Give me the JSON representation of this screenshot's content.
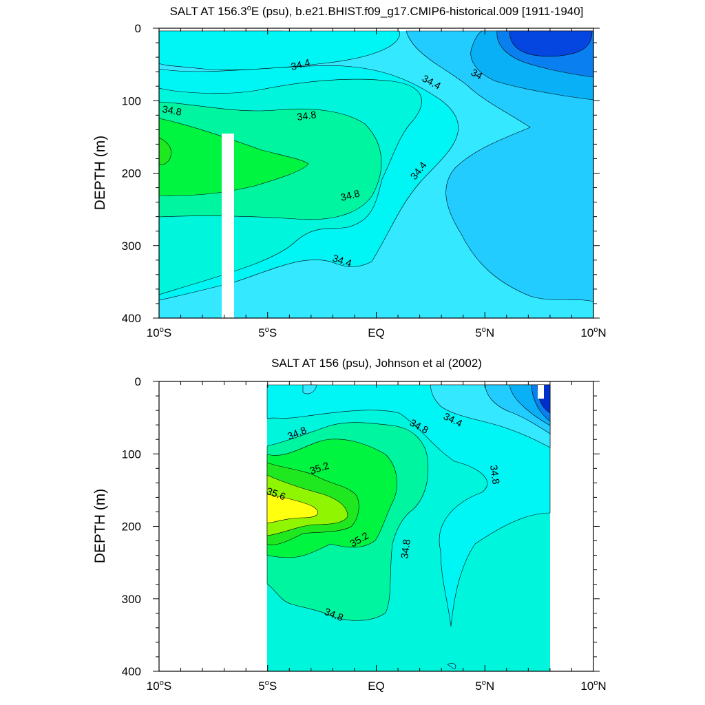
{
  "chart_data": [
    {
      "type": "contour",
      "title": "SALT AT 156.3°E (psu), b.e21.BHIST.f09_g17.CMIP6-historical.009 [1911-1940]",
      "title_parts": {
        "pre": "SALT AT 156.3",
        "sup": "o",
        "post": "E (psu), b.e21.BHIST.f09_g17.CMIP6-historical.009 [1911-1940]"
      },
      "xlabel": "",
      "ylabel": "DEPTH (m)",
      "xlim": [
        -10,
        10
      ],
      "ylim": [
        400,
        0
      ],
      "x_ticks": [
        {
          "value": -10,
          "num": "10",
          "sup": "o",
          "hem": "S"
        },
        {
          "value": -5,
          "num": "5",
          "sup": "o",
          "hem": "S"
        },
        {
          "value": 0,
          "num": "EQ",
          "sup": "",
          "hem": ""
        },
        {
          "value": 5,
          "num": "5",
          "sup": "o",
          "hem": "N"
        },
        {
          "value": 10,
          "num": "10",
          "sup": "o",
          "hem": "N"
        }
      ],
      "y_ticks": [
        0,
        100,
        200,
        300,
        400
      ],
      "contour_labels": [
        {
          "text": "34.4",
          "lat": -4.5,
          "depth": 48
        },
        {
          "text": "34.8",
          "lat": -9.5,
          "depth": 111
        },
        {
          "text": "34.8",
          "lat": -1.5,
          "depth": 118
        },
        {
          "text": "34.4",
          "lat": 2.5,
          "depth": 75
        },
        {
          "text": "34",
          "lat": 5.5,
          "depth": 62
        },
        {
          "text": "34.8",
          "lat": -1.0,
          "depth": 225
        },
        {
          "text": "34.4",
          "lat": 2.2,
          "depth": 190
        },
        {
          "text": "34.4",
          "lat": -1.5,
          "depth": 320
        }
      ],
      "salinity_ranges_psu": {
        "min_shown": 33.6,
        "max_shown": 35.0,
        "contour_interval": 0.2
      }
    },
    {
      "type": "contour",
      "title": "SALT AT 156 (psu), Johnson et al (2002)",
      "title_parts": {
        "pre": "SALT AT 156 (psu), Johnson et al (2002)",
        "sup": "",
        "post": ""
      },
      "xlabel": "",
      "ylabel": "DEPTH (m)",
      "xlim": [
        -10,
        10
      ],
      "ylim": [
        400,
        0
      ],
      "x_ticks": [
        {
          "value": -10,
          "num": "10",
          "sup": "o",
          "hem": "S"
        },
        {
          "value": -5,
          "num": "5",
          "sup": "o",
          "hem": "S"
        },
        {
          "value": 0,
          "num": "EQ",
          "sup": "",
          "hem": ""
        },
        {
          "value": 5,
          "num": "5",
          "sup": "o",
          "hem": "N"
        },
        {
          "value": 10,
          "num": "10",
          "sup": "o",
          "hem": "N"
        }
      ],
      "y_ticks": [
        0,
        100,
        200,
        300,
        400
      ],
      "data_extent_lat": [
        -5,
        8
      ],
      "contour_labels": [
        {
          "text": "34.8",
          "lat": -3.6,
          "depth": 70
        },
        {
          "text": "34.8",
          "lat": 2.1,
          "depth": 60
        },
        {
          "text": "34.4",
          "lat": 3.5,
          "depth": 53
        },
        {
          "text": "35.2",
          "lat": -2.4,
          "depth": 115
        },
        {
          "text": "35.6",
          "lat": -4.5,
          "depth": 155
        },
        {
          "text": "35.2",
          "lat": -0.6,
          "depth": 215
        },
        {
          "text": "34.8",
          "lat": 1.2,
          "depth": 220
        },
        {
          "text": "34.8",
          "lat": 6.0,
          "depth": 127
        },
        {
          "text": "34.8",
          "lat": -1.8,
          "depth": 325
        }
      ],
      "salinity_ranges_psu": {
        "min_shown": 33.6,
        "max_shown": 35.8,
        "contour_interval": 0.2
      }
    }
  ],
  "colors": {
    "s34_0": "#0ab0f5",
    "s34_2": "#22ccff",
    "s34_4": "#33e8ff",
    "s34_6": "#00f5f5",
    "s34_8": "#00f5dd",
    "s35_0": "#00f5a0",
    "s35_2": "#00f540",
    "s35_4": "#90f500",
    "s35_6": "#ffff10",
    "deep_blue_1": "#0a80f0",
    "deep_blue_2": "#0545e0",
    "deep_blue_3": "#0030cc"
  }
}
